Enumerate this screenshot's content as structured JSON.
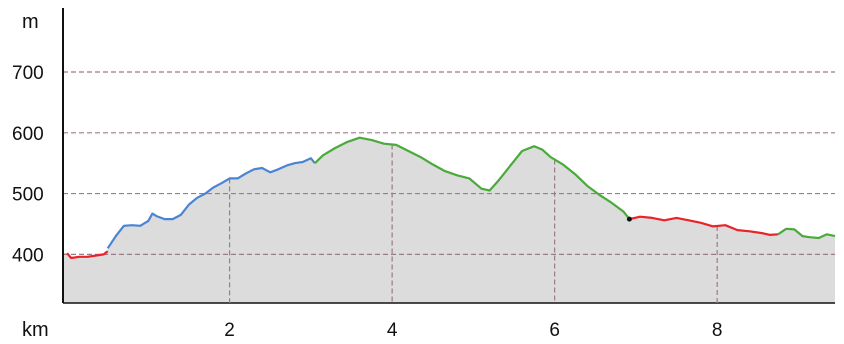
{
  "chart_data": {
    "type": "area",
    "title": "",
    "xlabel": "km",
    "ylabel": "m",
    "xlim": [
      -0.05,
      9.45
    ],
    "ylim": [
      320,
      700
    ],
    "x_ticks": [
      2,
      4,
      6,
      8
    ],
    "x_tick_labels": [
      "2",
      "4",
      "6",
      "8"
    ],
    "y_ticks": [
      400,
      500,
      600,
      700
    ],
    "y_tick_labels": [
      "400",
      "500",
      "600",
      "700"
    ],
    "grid": true,
    "legend": "none",
    "fill_color": "#dcdcdc",
    "grid_color": "#9a7b86",
    "series": [
      {
        "color": "#e8242a",
        "x": [
          0.0,
          0.05,
          0.15,
          0.25,
          0.35,
          0.45,
          0.5
        ],
        "y": [
          402,
          394,
          396,
          396,
          398,
          400,
          405
        ]
      },
      {
        "color": "#4a84d4",
        "x": [
          0.5,
          0.6,
          0.7,
          0.8,
          0.9,
          1.0,
          1.05,
          1.1,
          1.2,
          1.3,
          1.4,
          1.5,
          1.6,
          1.7,
          1.8,
          1.9,
          2.0,
          2.1,
          2.2,
          2.3,
          2.4,
          2.5,
          2.6,
          2.7,
          2.8,
          2.9,
          3.0,
          3.05
        ],
        "y": [
          410,
          430,
          447,
          448,
          447,
          455,
          467,
          463,
          458,
          458,
          465,
          482,
          493,
          500,
          510,
          517,
          525,
          525,
          533,
          540,
          542,
          535,
          540,
          546,
          550,
          552,
          558,
          550
        ]
      },
      {
        "color": "#4aaa3a",
        "x": [
          3.05,
          3.15,
          3.3,
          3.45,
          3.6,
          3.75,
          3.9,
          4.05,
          4.2,
          4.35,
          4.5,
          4.65,
          4.8,
          4.95,
          5.1,
          5.2,
          5.3,
          5.45,
          5.6,
          5.75,
          5.85,
          5.95,
          6.1,
          6.25,
          6.4,
          6.55,
          6.7,
          6.85,
          6.92
        ],
        "y": [
          550,
          563,
          575,
          585,
          592,
          588,
          582,
          580,
          570,
          560,
          548,
          537,
          530,
          525,
          508,
          505,
          520,
          545,
          570,
          578,
          572,
          560,
          548,
          532,
          513,
          498,
          485,
          470,
          458
        ]
      },
      {
        "color": "#e8242a",
        "x": [
          6.92,
          7.05,
          7.2,
          7.35,
          7.5,
          7.65,
          7.8,
          7.95,
          8.1,
          8.25,
          8.4,
          8.55,
          8.65,
          8.75
        ],
        "y": [
          458,
          462,
          460,
          456,
          460,
          456,
          452,
          446,
          448,
          440,
          438,
          435,
          432,
          433
        ]
      },
      {
        "color": "#4aaa3a",
        "x": [
          8.75,
          8.85,
          8.95,
          9.05,
          9.15,
          9.25,
          9.35,
          9.45
        ],
        "y": [
          433,
          442,
          441,
          430,
          428,
          427,
          433,
          430
        ]
      }
    ],
    "markers": [
      {
        "x": 6.92,
        "y": 458,
        "color": "#111111"
      }
    ]
  }
}
